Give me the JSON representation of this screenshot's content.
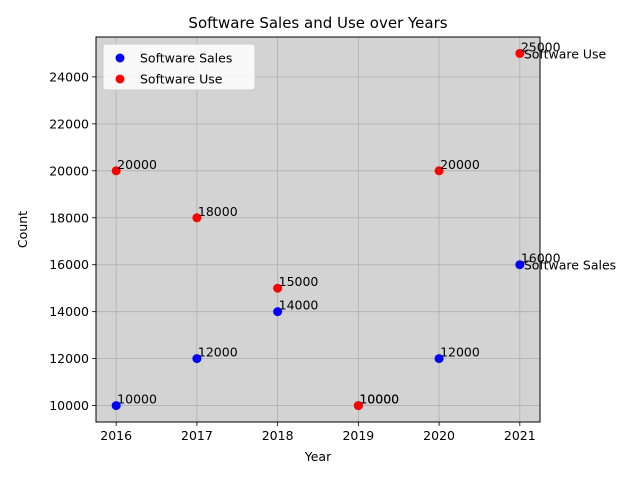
{
  "chart_data": {
    "type": "scatter",
    "title": "Software Sales and Use over Years",
    "xlabel": "Year",
    "ylabel": "Count",
    "x": [
      2016,
      2017,
      2018,
      2019,
      2020,
      2021
    ],
    "xticks": [
      "2016",
      "2017",
      "2018",
      "2019",
      "2020",
      "2021"
    ],
    "yticks": [
      "10000",
      "12000",
      "14000",
      "16000",
      "18000",
      "20000",
      "22000",
      "24000"
    ],
    "ylim": [
      9300,
      25700
    ],
    "xlim": [
      2015.75,
      2021.25
    ],
    "grid": true,
    "plot_background": "#d3d3d3",
    "legend_position": "upper-left",
    "series": [
      {
        "name": "Software Sales",
        "color": "#0000ff",
        "values": [
          10000,
          12000,
          14000,
          10000,
          12000,
          16000
        ],
        "labels": [
          "10000",
          "12000",
          "14000",
          "10000",
          "12000",
          "16000"
        ],
        "end_label": "Software Sales"
      },
      {
        "name": "Software Use",
        "color": "#ff0000",
        "values": [
          20000,
          18000,
          15000,
          10000,
          20000,
          25000
        ],
        "labels": [
          "20000",
          "18000",
          "15000",
          "10000",
          "20000",
          "25000"
        ],
        "end_label": "Software Use"
      }
    ]
  }
}
